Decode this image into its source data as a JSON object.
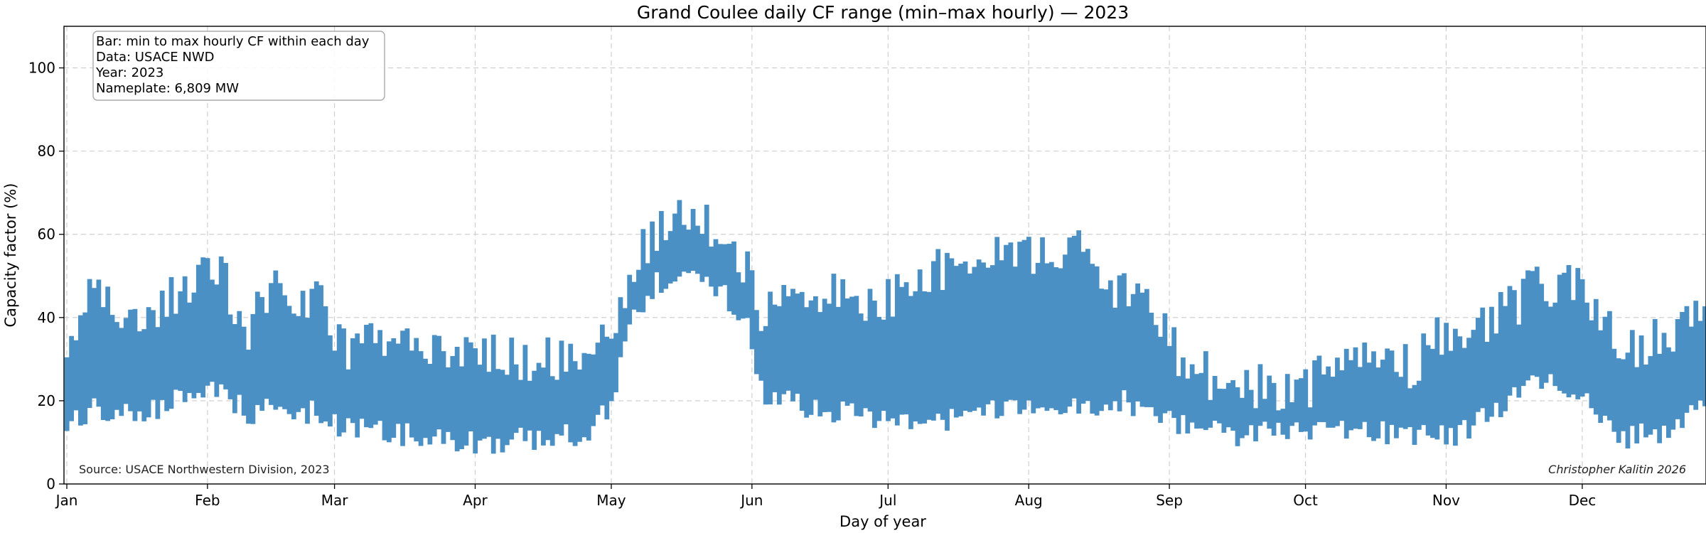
{
  "chart_data": {
    "type": "bar",
    "subtype": "floating range bars (min to max per day)",
    "title": "Grand Coulee daily CF range (min–max hourly) — 2023",
    "xlabel": "Day of year",
    "ylabel": "Capacity factor (%)",
    "ylim": [
      0,
      110
    ],
    "yticks": [
      0,
      20,
      40,
      60,
      80,
      100
    ],
    "xlim": [
      0,
      365
    ],
    "xticks": [
      {
        "label": "Jan",
        "day": 0
      },
      {
        "label": "Feb",
        "day": 31
      },
      {
        "label": "Mar",
        "day": 59
      },
      {
        "label": "Apr",
        "day": 90
      },
      {
        "label": "May",
        "day": 120
      },
      {
        "label": "Jun",
        "day": 151
      },
      {
        "label": "Jul",
        "day": 181
      },
      {
        "label": "Aug",
        "day": 212
      },
      {
        "label": "Sep",
        "day": 243
      },
      {
        "label": "Oct",
        "day": 273
      },
      {
        "label": "Nov",
        "day": 304
      },
      {
        "label": "Dec",
        "day": 334
      }
    ],
    "grid": true,
    "bar_color": "#4a90c4",
    "info_box": [
      "Bar: min to max hourly CF within each day",
      "Data: USACE NWD",
      "Year: 2023",
      "Nameplate: 6,809 MW"
    ],
    "source_note": "Source: USACE Northwestern Division, 2023",
    "credit": "Christopher Kalitin 2026",
    "profile": [
      {
        "day": 0,
        "min": 14,
        "max": 32
      },
      {
        "day": 5,
        "min": 18,
        "max": 45
      },
      {
        "day": 15,
        "min": 16,
        "max": 38
      },
      {
        "day": 28,
        "min": 22,
        "max": 48
      },
      {
        "day": 33,
        "min": 22,
        "max": 52
      },
      {
        "day": 40,
        "min": 17,
        "max": 38
      },
      {
        "day": 47,
        "min": 18,
        "max": 48
      },
      {
        "day": 55,
        "min": 17,
        "max": 44
      },
      {
        "day": 62,
        "min": 13,
        "max": 32
      },
      {
        "day": 75,
        "min": 12,
        "max": 36
      },
      {
        "day": 90,
        "min": 10,
        "max": 30
      },
      {
        "day": 105,
        "min": 11,
        "max": 30
      },
      {
        "day": 116,
        "min": 12,
        "max": 30
      },
      {
        "day": 120,
        "min": 20,
        "max": 36
      },
      {
        "day": 124,
        "min": 38,
        "max": 52
      },
      {
        "day": 130,
        "min": 48,
        "max": 61
      },
      {
        "day": 138,
        "min": 50,
        "max": 63
      },
      {
        "day": 145,
        "min": 45,
        "max": 59
      },
      {
        "day": 150,
        "min": 38,
        "max": 50
      },
      {
        "day": 153,
        "min": 22,
        "max": 42
      },
      {
        "day": 165,
        "min": 18,
        "max": 47
      },
      {
        "day": 178,
        "min": 16,
        "max": 42
      },
      {
        "day": 190,
        "min": 15,
        "max": 50
      },
      {
        "day": 200,
        "min": 17,
        "max": 57
      },
      {
        "day": 212,
        "min": 19,
        "max": 54
      },
      {
        "day": 225,
        "min": 19,
        "max": 57
      },
      {
        "day": 232,
        "min": 20,
        "max": 46
      },
      {
        "day": 242,
        "min": 16,
        "max": 40
      },
      {
        "day": 245,
        "min": 14,
        "max": 28
      },
      {
        "day": 258,
        "min": 12,
        "max": 24
      },
      {
        "day": 273,
        "min": 12,
        "max": 22
      },
      {
        "day": 282,
        "min": 13,
        "max": 31
      },
      {
        "day": 295,
        "min": 12,
        "max": 28
      },
      {
        "day": 304,
        "min": 11,
        "max": 36
      },
      {
        "day": 315,
        "min": 17,
        "max": 40
      },
      {
        "day": 322,
        "min": 25,
        "max": 46
      },
      {
        "day": 334,
        "min": 23,
        "max": 48
      },
      {
        "day": 343,
        "min": 11,
        "max": 32
      },
      {
        "day": 352,
        "min": 13,
        "max": 36
      },
      {
        "day": 365,
        "min": 20,
        "max": 44
      }
    ],
    "days": 365
  }
}
